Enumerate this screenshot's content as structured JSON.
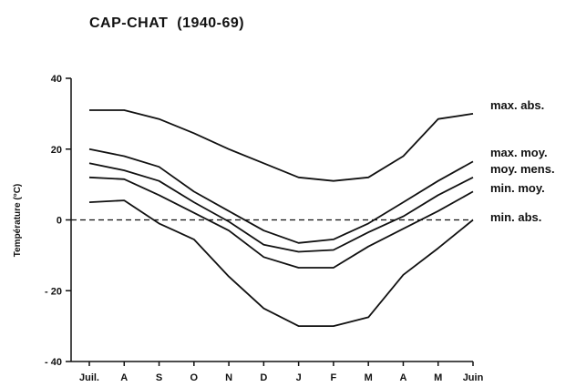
{
  "chart_data": {
    "type": "line",
    "title": "CAP-CHAT  (1940-69)",
    "ylabel": "Température (°C)",
    "xlabel": "",
    "categories": [
      "Juil.",
      "A",
      "S",
      "O",
      "N",
      "D",
      "J",
      "F",
      "M",
      "A",
      "M",
      "Juin"
    ],
    "ylim": [
      -40,
      40
    ],
    "yticks": [
      40,
      20,
      0,
      -20,
      -40
    ],
    "ytick_labels": [
      "40",
      "20",
      "0",
      "- 20",
      "- 40"
    ],
    "grid": false,
    "zero_line": "dashed",
    "series": [
      {
        "name": "max. abs.",
        "values": [
          31,
          31,
          28.5,
          24.5,
          20,
          16,
          12,
          11,
          12,
          18,
          28.5,
          30
        ]
      },
      {
        "name": "max. moy.",
        "values": [
          20,
          18,
          15,
          8,
          2.5,
          -3,
          -6.5,
          -5.5,
          -1,
          5,
          11,
          16.5
        ]
      },
      {
        "name": "moy. mens.",
        "values": [
          16,
          14,
          11,
          5,
          -0.5,
          -7,
          -9,
          -8.5,
          -3.5,
          1,
          7,
          12
        ]
      },
      {
        "name": "min. moy.",
        "values": [
          12,
          11.5,
          7,
          2,
          -3,
          -10.5,
          -13.5,
          -13.5,
          -7.5,
          -2.5,
          2.5,
          8
        ]
      },
      {
        "name": "min. abs.",
        "values": [
          5,
          5.5,
          -1,
          -5.5,
          -16,
          -25,
          -30,
          -30,
          -27.5,
          -15.5,
          -8,
          0
        ]
      }
    ]
  }
}
